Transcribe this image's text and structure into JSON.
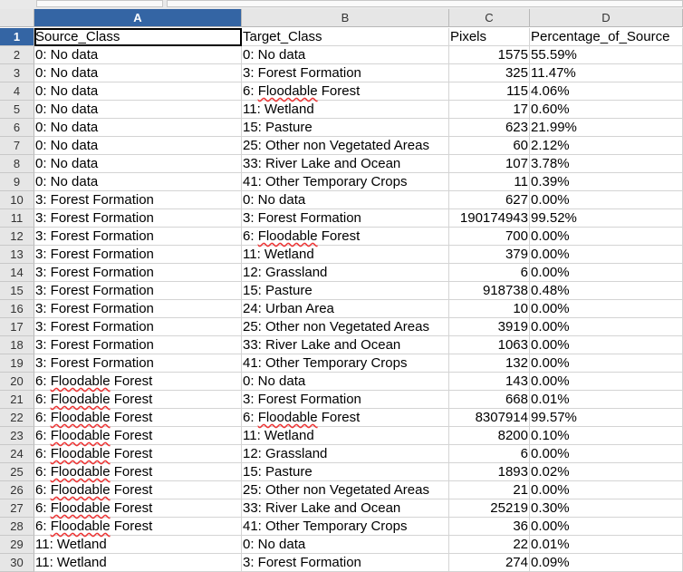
{
  "columns": [
    "A",
    "B",
    "C",
    "D"
  ],
  "selected_column": "A",
  "header_row": [
    "Source_Class",
    "Target_Class",
    "Pixels",
    "Percentage_of_Source"
  ],
  "rows": [
    [
      "0: No data",
      "0: No data",
      "1575",
      "55.59%"
    ],
    [
      "0: No data",
      "3: Forest Formation",
      "325",
      "11.47%"
    ],
    [
      "0: No data",
      "6: Floodable Forest",
      "115",
      "4.06%"
    ],
    [
      "0: No data",
      "11: Wetland",
      "17",
      "0.60%"
    ],
    [
      "0: No data",
      "15: Pasture",
      "623",
      "21.99%"
    ],
    [
      "0: No data",
      "25: Other non Vegetated Areas",
      "60",
      "2.12%"
    ],
    [
      "0: No data",
      "33: River Lake and Ocean",
      "107",
      "3.78%"
    ],
    [
      "0: No data",
      "41: Other Temporary Crops",
      "11",
      "0.39%"
    ],
    [
      "3: Forest Formation",
      "0: No data",
      "627",
      "0.00%"
    ],
    [
      "3: Forest Formation",
      "3: Forest Formation",
      "190174943",
      "99.52%"
    ],
    [
      "3: Forest Formation",
      "6: Floodable Forest",
      "700",
      "0.00%"
    ],
    [
      "3: Forest Formation",
      "11: Wetland",
      "379",
      "0.00%"
    ],
    [
      "3: Forest Formation",
      "12: Grassland",
      "6",
      "0.00%"
    ],
    [
      "3: Forest Formation",
      "15: Pasture",
      "918738",
      "0.48%"
    ],
    [
      "3: Forest Formation",
      "24: Urban Area",
      "10",
      "0.00%"
    ],
    [
      "3: Forest Formation",
      "25: Other non Vegetated Areas",
      "3919",
      "0.00%"
    ],
    [
      "3: Forest Formation",
      "33: River Lake and Ocean",
      "1063",
      "0.00%"
    ],
    [
      "3: Forest Formation",
      "41: Other Temporary Crops",
      "132",
      "0.00%"
    ],
    [
      "6: Floodable Forest",
      "0: No data",
      "143",
      "0.00%"
    ],
    [
      "6: Floodable Forest",
      "3: Forest Formation",
      "668",
      "0.01%"
    ],
    [
      "6: Floodable Forest",
      "6: Floodable Forest",
      "8307914",
      "99.57%"
    ],
    [
      "6: Floodable Forest",
      "11: Wetland",
      "8200",
      "0.10%"
    ],
    [
      "6: Floodable Forest",
      "12: Grassland",
      "6",
      "0.00%"
    ],
    [
      "6: Floodable Forest",
      "15: Pasture",
      "1893",
      "0.02%"
    ],
    [
      "6: Floodable Forest",
      "25: Other non Vegetated Areas",
      "21",
      "0.00%"
    ],
    [
      "6: Floodable Forest",
      "33: River Lake and Ocean",
      "25219",
      "0.30%"
    ],
    [
      "6: Floodable Forest",
      "41: Other Temporary Crops",
      "36",
      "0.00%"
    ],
    [
      "11: Wetland",
      "0: No data",
      "22",
      "0.01%"
    ],
    [
      "11: Wetland",
      "3: Forest Formation",
      "274",
      "0.09%"
    ]
  ]
}
